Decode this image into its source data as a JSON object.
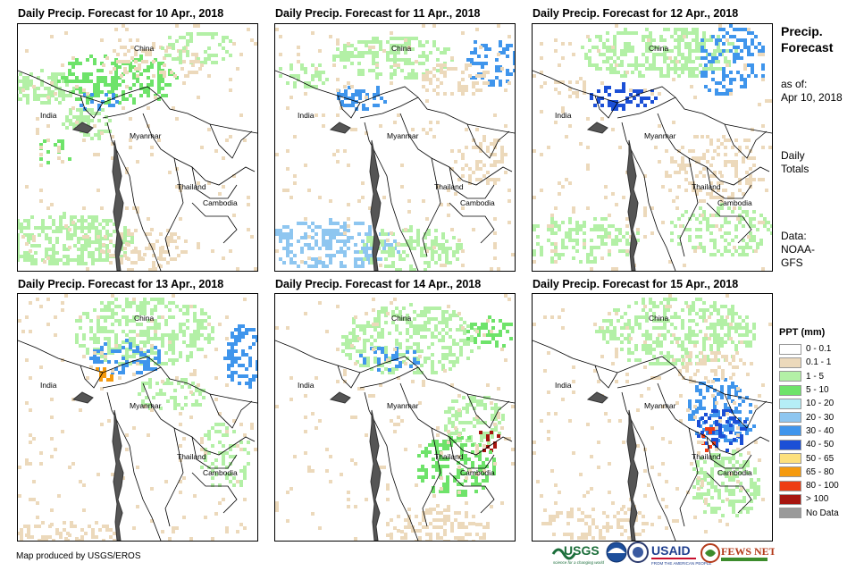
{
  "panels": [
    {
      "title": "Daily Precip. Forecast for 10 Apr., 2018"
    },
    {
      "title": "Daily Precip. Forecast for 11 Apr., 2018"
    },
    {
      "title": "Daily Precip. Forecast for 12 Apr., 2018"
    },
    {
      "title": "Daily Precip. Forecast for 13 Apr., 2018"
    },
    {
      "title": "Daily Precip. Forecast for 14 Apr., 2018"
    },
    {
      "title": "Daily Precip. Forecast for 15 Apr., 2018"
    }
  ],
  "map_labels": {
    "china": "China",
    "india": "India",
    "myanmar": "Myanmar",
    "thailand": "Thailand",
    "cambodia": "Cambodia"
  },
  "sidebar": {
    "title_line1": "Precip.",
    "title_line2": "Forecast",
    "asof_line1": "as of:",
    "asof_line2": "Apr 10, 2018",
    "totals_line1": "Daily",
    "totals_line2": "Totals",
    "data_line1": "Data:",
    "data_line2": "NOAA-",
    "data_line3": "GFS"
  },
  "legend": {
    "title": "PPT (mm)",
    "items": [
      {
        "label": "0 - 0.1",
        "color": "#ffffff"
      },
      {
        "label": "0.1 - 1",
        "color": "#ecd9bb"
      },
      {
        "label": "1 - 5",
        "color": "#b3f0a6"
      },
      {
        "label": "5 - 10",
        "color": "#6ee36a"
      },
      {
        "label": "10 - 20",
        "color": "#b5eef6"
      },
      {
        "label": "20 - 30",
        "color": "#8ec6f0"
      },
      {
        "label": "30 - 40",
        "color": "#3f95ec"
      },
      {
        "label": "40 - 50",
        "color": "#1b4fd6"
      },
      {
        "label": "50 - 65",
        "color": "#fde07c"
      },
      {
        "label": "65 - 80",
        "color": "#f59a0e"
      },
      {
        "label": "80 - 100",
        "color": "#ee3d14"
      },
      {
        "label": "> 100",
        "color": "#a7150f"
      },
      {
        "label": "No Data",
        "color": "#9a9a9a"
      }
    ]
  },
  "credit": "Map produced by USGS/EROS",
  "logos": {
    "usgs": "USGS",
    "usgs_tagline": "science for a changing world",
    "usaid": "USAID",
    "usaid_tagline": "FROM THE AMERICAN PEOPLE",
    "fewsnet": "FEWS NET"
  }
}
